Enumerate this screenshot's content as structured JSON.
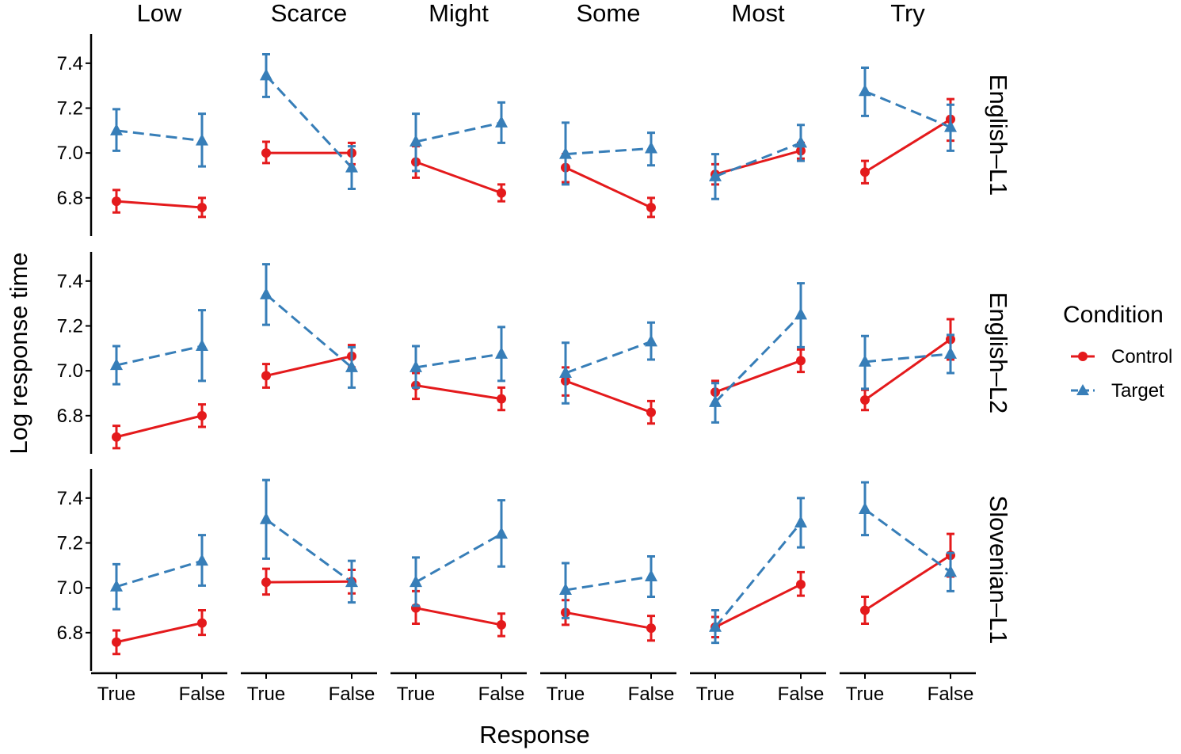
{
  "chart_data": {
    "type": "line",
    "xlabel": "Response",
    "ylabel": "Log response time",
    "x_categories": [
      "True",
      "False"
    ],
    "columns": [
      "Low",
      "Scarce",
      "Might",
      "Some",
      "Most",
      "Try"
    ],
    "rows": [
      "English–L1",
      "English–L2",
      "Slovenian–L1"
    ],
    "ylim": [
      6.63,
      7.53
    ],
    "yticks": [
      6.8,
      7.0,
      7.2,
      7.4
    ],
    "ytick_labels": [
      "6.8",
      "7.0",
      "7.2",
      "7.4"
    ],
    "legend": {
      "title": "Condition",
      "position": "right",
      "entries": [
        {
          "name": "Control",
          "color": "#e41a1c",
          "marker": "circle",
          "line": "solid"
        },
        {
          "name": "Target",
          "color": "#377eb8",
          "marker": "triangle",
          "line": "dashed"
        }
      ]
    },
    "grid": false,
    "panels": [
      {
        "row": "English–L1",
        "column": "Low",
        "Control": {
          "values": [
            6.785,
            6.757
          ],
          "lower": [
            6.735,
            6.715
          ],
          "upper": [
            6.835,
            6.8
          ]
        },
        "Target": {
          "values": [
            7.1,
            7.055
          ],
          "lower": [
            7.01,
            6.94
          ],
          "upper": [
            7.195,
            7.175
          ]
        }
      },
      {
        "row": "English–L1",
        "column": "Scarce",
        "Control": {
          "values": [
            7.0,
            7.0
          ],
          "lower": [
            6.955,
            6.95
          ],
          "upper": [
            7.05,
            7.045
          ]
        },
        "Target": {
          "values": [
            7.345,
            6.935
          ],
          "lower": [
            7.25,
            6.84
          ],
          "upper": [
            7.44,
            7.03
          ]
        }
      },
      {
        "row": "English–L1",
        "column": "Might",
        "Control": {
          "values": [
            6.96,
            6.822
          ],
          "lower": [
            6.89,
            6.785
          ],
          "upper": [
            7.03,
            6.86
          ]
        },
        "Target": {
          "values": [
            7.05,
            7.135
          ],
          "lower": [
            6.92,
            7.045
          ],
          "upper": [
            7.175,
            7.225
          ]
        }
      },
      {
        "row": "English–L1",
        "column": "Some",
        "Control": {
          "values": [
            6.935,
            6.757
          ],
          "lower": [
            6.87,
            6.715
          ],
          "upper": [
            6.995,
            6.8
          ]
        },
        "Target": {
          "values": [
            6.995,
            7.02
          ],
          "lower": [
            6.86,
            6.945
          ],
          "upper": [
            7.135,
            7.09
          ]
        }
      },
      {
        "row": "English–L1",
        "column": "Most",
        "Control": {
          "values": [
            6.905,
            7.01
          ],
          "lower": [
            6.86,
            6.975
          ],
          "upper": [
            6.95,
            7.045
          ]
        },
        "Target": {
          "values": [
            6.895,
            7.045
          ],
          "lower": [
            6.795,
            6.965
          ],
          "upper": [
            6.995,
            7.125
          ]
        }
      },
      {
        "row": "English–L1",
        "column": "Try",
        "Control": {
          "values": [
            6.915,
            7.15
          ],
          "lower": [
            6.865,
            7.055
          ],
          "upper": [
            6.965,
            7.24
          ]
        },
        "Target": {
          "values": [
            7.275,
            7.115
          ],
          "lower": [
            7.165,
            7.01
          ],
          "upper": [
            7.38,
            7.215
          ]
        }
      },
      {
        "row": "English–L2",
        "column": "Low",
        "Control": {
          "values": [
            6.705,
            6.8
          ],
          "lower": [
            6.655,
            6.75
          ],
          "upper": [
            6.755,
            6.85
          ]
        },
        "Target": {
          "values": [
            7.025,
            7.11
          ],
          "lower": [
            6.94,
            6.955
          ],
          "upper": [
            7.11,
            7.27
          ]
        }
      },
      {
        "row": "English–L2",
        "column": "Scarce",
        "Control": {
          "values": [
            6.978,
            7.065
          ],
          "lower": [
            6.925,
            7.015
          ],
          "upper": [
            7.03,
            7.115
          ]
        },
        "Target": {
          "values": [
            7.34,
            7.015
          ],
          "lower": [
            7.205,
            6.925
          ],
          "upper": [
            7.475,
            7.105
          ]
        }
      },
      {
        "row": "English–L2",
        "column": "Might",
        "Control": {
          "values": [
            6.935,
            6.875
          ],
          "lower": [
            6.875,
            6.825
          ],
          "upper": [
            6.99,
            6.925
          ]
        },
        "Target": {
          "values": [
            7.015,
            7.075
          ],
          "lower": [
            6.925,
            6.955
          ],
          "upper": [
            7.11,
            7.195
          ]
        }
      },
      {
        "row": "English–L2",
        "column": "Some",
        "Control": {
          "values": [
            6.955,
            6.815
          ],
          "lower": [
            6.89,
            6.765
          ],
          "upper": [
            7.015,
            6.865
          ]
        },
        "Target": {
          "values": [
            6.99,
            7.13
          ],
          "lower": [
            6.855,
            7.05
          ],
          "upper": [
            7.125,
            7.215
          ]
        }
      },
      {
        "row": "English–L2",
        "column": "Most",
        "Control": {
          "values": [
            6.905,
            7.045
          ],
          "lower": [
            6.855,
            6.995
          ],
          "upper": [
            6.955,
            7.095
          ]
        },
        "Target": {
          "values": [
            6.86,
            7.25
          ],
          "lower": [
            6.77,
            7.105
          ],
          "upper": [
            6.945,
            7.39
          ]
        }
      },
      {
        "row": "English–L2",
        "column": "Try",
        "Control": {
          "values": [
            6.87,
            7.14
          ],
          "lower": [
            6.825,
            7.05
          ],
          "upper": [
            6.915,
            7.23
          ]
        },
        "Target": {
          "values": [
            7.04,
            7.075
          ],
          "lower": [
            6.92,
            6.99
          ],
          "upper": [
            7.155,
            7.16
          ]
        }
      },
      {
        "row": "Slovenian–L1",
        "column": "Low",
        "Control": {
          "values": [
            6.758,
            6.843
          ],
          "lower": [
            6.705,
            6.79
          ],
          "upper": [
            6.81,
            6.9
          ]
        },
        "Target": {
          "values": [
            7.005,
            7.12
          ],
          "lower": [
            6.905,
            7.01
          ],
          "upper": [
            7.105,
            7.235
          ]
        }
      },
      {
        "row": "Slovenian–L1",
        "column": "Scarce",
        "Control": {
          "values": [
            7.025,
            7.028
          ],
          "lower": [
            6.97,
            6.975
          ],
          "upper": [
            7.085,
            7.08
          ]
        },
        "Target": {
          "values": [
            7.305,
            7.025
          ],
          "lower": [
            7.13,
            6.935
          ],
          "upper": [
            7.48,
            7.12
          ]
        }
      },
      {
        "row": "Slovenian–L1",
        "column": "Might",
        "Control": {
          "values": [
            6.91,
            6.835
          ],
          "lower": [
            6.84,
            6.785
          ],
          "upper": [
            6.985,
            6.885
          ]
        },
        "Target": {
          "values": [
            7.025,
            7.24
          ],
          "lower": [
            6.92,
            7.095
          ],
          "upper": [
            7.135,
            7.39
          ]
        }
      },
      {
        "row": "Slovenian–L1",
        "column": "Some",
        "Control": {
          "values": [
            6.89,
            6.82
          ],
          "lower": [
            6.835,
            6.765
          ],
          "upper": [
            6.945,
            6.875
          ]
        },
        "Target": {
          "values": [
            6.99,
            7.05
          ],
          "lower": [
            6.865,
            6.96
          ],
          "upper": [
            7.11,
            7.14
          ]
        }
      },
      {
        "row": "Slovenian–L1",
        "column": "Most",
        "Control": {
          "values": [
            6.825,
            7.015
          ],
          "lower": [
            6.78,
            6.965
          ],
          "upper": [
            6.87,
            7.07
          ]
        },
        "Target": {
          "values": [
            6.825,
            7.29
          ],
          "lower": [
            6.755,
            7.18
          ],
          "upper": [
            6.9,
            7.4
          ]
        }
      },
      {
        "row": "Slovenian–L1",
        "column": "Try",
        "Control": {
          "values": [
            6.9,
            7.145
          ],
          "lower": [
            6.84,
            7.05
          ],
          "upper": [
            6.96,
            7.24
          ]
        },
        "Target": {
          "values": [
            7.35,
            7.07
          ],
          "lower": [
            7.235,
            6.985
          ],
          "upper": [
            7.47,
            7.155
          ]
        }
      }
    ]
  }
}
